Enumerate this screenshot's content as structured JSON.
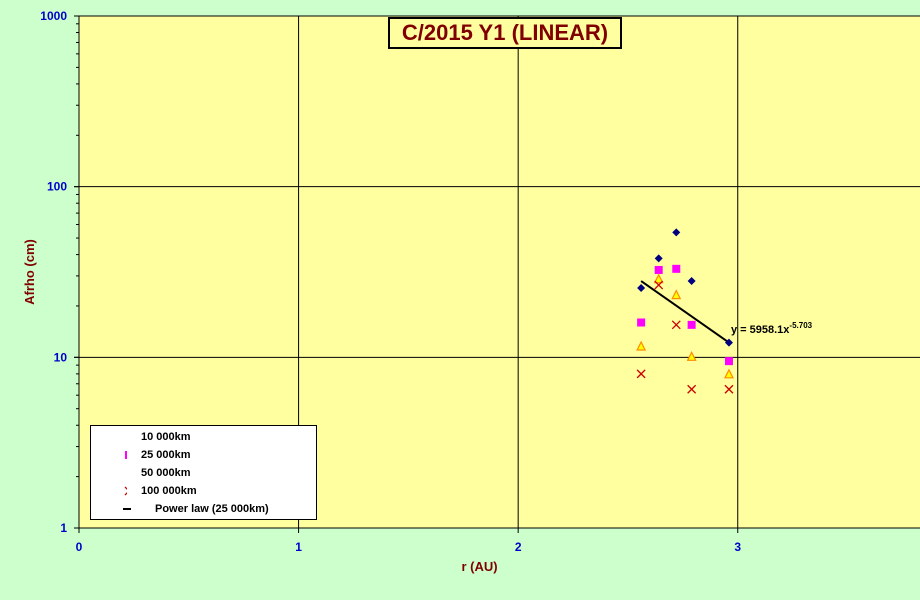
{
  "chart_data": {
    "type": "scatter",
    "title": "C/2015 Y1 (LINEAR)",
    "xlabel": "r (AU)",
    "ylabel": "Afrho (cm)",
    "xlim": [
      0,
      3.83
    ],
    "ylim": [
      1,
      1000
    ],
    "yscale": "log",
    "x_ticks": [
      "0",
      "1",
      "2",
      "3"
    ],
    "y_ticks": [
      "1",
      "10",
      "100",
      "1000"
    ],
    "grid": true,
    "legend_position": "bottom-left",
    "series": [
      {
        "name": "10 000km",
        "marker": "diamond",
        "color": "#000080",
        "x": [
          2.56,
          2.64,
          2.72,
          2.79,
          2.96
        ],
        "y": [
          25.5,
          38.0,
          54.0,
          28.0,
          12.2
        ]
      },
      {
        "name": "25 000km",
        "marker": "square",
        "color": "#ff00ff",
        "x": [
          2.56,
          2.64,
          2.72,
          2.79,
          2.96
        ],
        "y": [
          16.0,
          32.5,
          33.0,
          15.5,
          9.5
        ]
      },
      {
        "name": "50 000km",
        "marker": "triangle",
        "color": "#ff8c00",
        "x": [
          2.56,
          2.64,
          2.72,
          2.79,
          2.96
        ],
        "y": [
          11.5,
          28.5,
          23.0,
          10.0,
          7.9
        ]
      },
      {
        "name": "100 000km",
        "marker": "x",
        "color": "#cc0000",
        "x": [
          2.56,
          2.64,
          2.72,
          2.79,
          2.96
        ],
        "y": [
          8.0,
          26.5,
          15.5,
          6.5,
          6.5
        ]
      }
    ],
    "fit": {
      "name": "Power law (25 000km)",
      "x_start": 2.56,
      "y_start": 28.0,
      "x_end": 2.96,
      "y_end": 12.2
    },
    "annotation": {
      "text": "y = 5958.1x",
      "exponent": "-5.703"
    }
  },
  "colors": {
    "background": "#ccffcc",
    "plot_area": "#ffffa0",
    "axis_labels": "#800000",
    "tick_labels": "#0000cc",
    "title": "#800000"
  }
}
